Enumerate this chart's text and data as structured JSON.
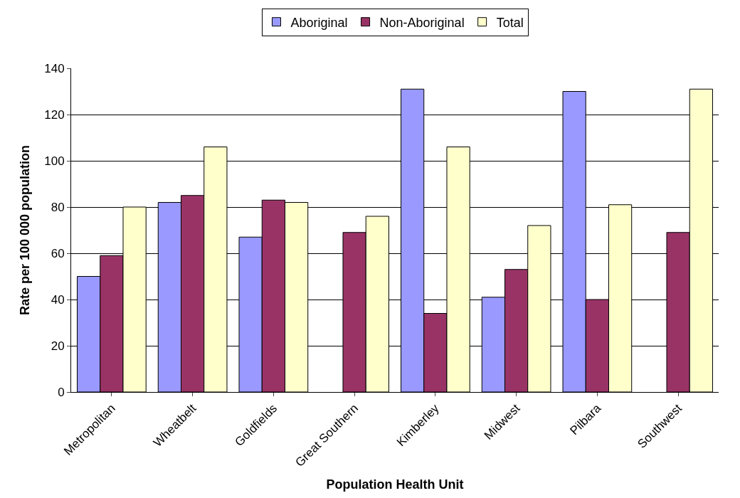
{
  "chart_data": {
    "type": "bar",
    "xlabel": "Population Health Unit",
    "ylabel": "Rate per 100 000 population",
    "categories": [
      "Metropolitan",
      "Wheatbelt",
      "Goldfields",
      "Great Southern",
      "Kimberley",
      "Midwest",
      "Pilbara",
      "Southwest"
    ],
    "series": [
      {
        "name": "Aboriginal",
        "color": "#9999ff",
        "values": [
          50,
          82,
          67,
          null,
          131,
          41,
          130,
          null
        ]
      },
      {
        "name": "Non-Aboriginal",
        "color": "#993366",
        "values": [
          59,
          85,
          83,
          69,
          34,
          53,
          40,
          69
        ]
      },
      {
        "name": "Total",
        "color": "#ffffcc",
        "values": [
          80,
          106,
          82,
          76,
          106,
          72,
          81,
          131
        ]
      }
    ],
    "ylim": [
      0,
      140
    ],
    "yticks": [
      0,
      20,
      40,
      60,
      80,
      100,
      120,
      140
    ],
    "grid": "y",
    "legend": "top"
  }
}
